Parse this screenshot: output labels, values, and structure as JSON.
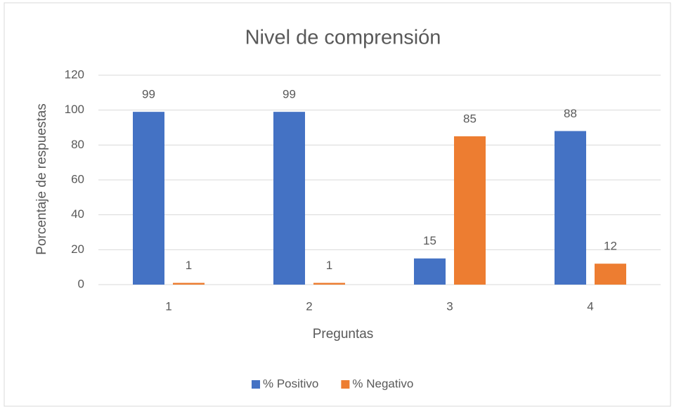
{
  "chart_data": {
    "type": "bar",
    "title": "Nivel de comprensión",
    "x_label": "Preguntas",
    "y_label": "Porcentaje de respuestas",
    "categories": [
      "1",
      "2",
      "3",
      "4"
    ],
    "series": [
      {
        "name": "% Positivo",
        "color": "#4472c4",
        "values": [
          99,
          99,
          15,
          88
        ]
      },
      {
        "name": "% Negativo",
        "color": "#ed7d31",
        "values": [
          1,
          1,
          85,
          12
        ]
      }
    ],
    "ylim": [
      0,
      120
    ],
    "yticks": [
      0,
      20,
      40,
      60,
      80,
      100,
      120
    ],
    "grid": true,
    "legend": "bottom"
  }
}
